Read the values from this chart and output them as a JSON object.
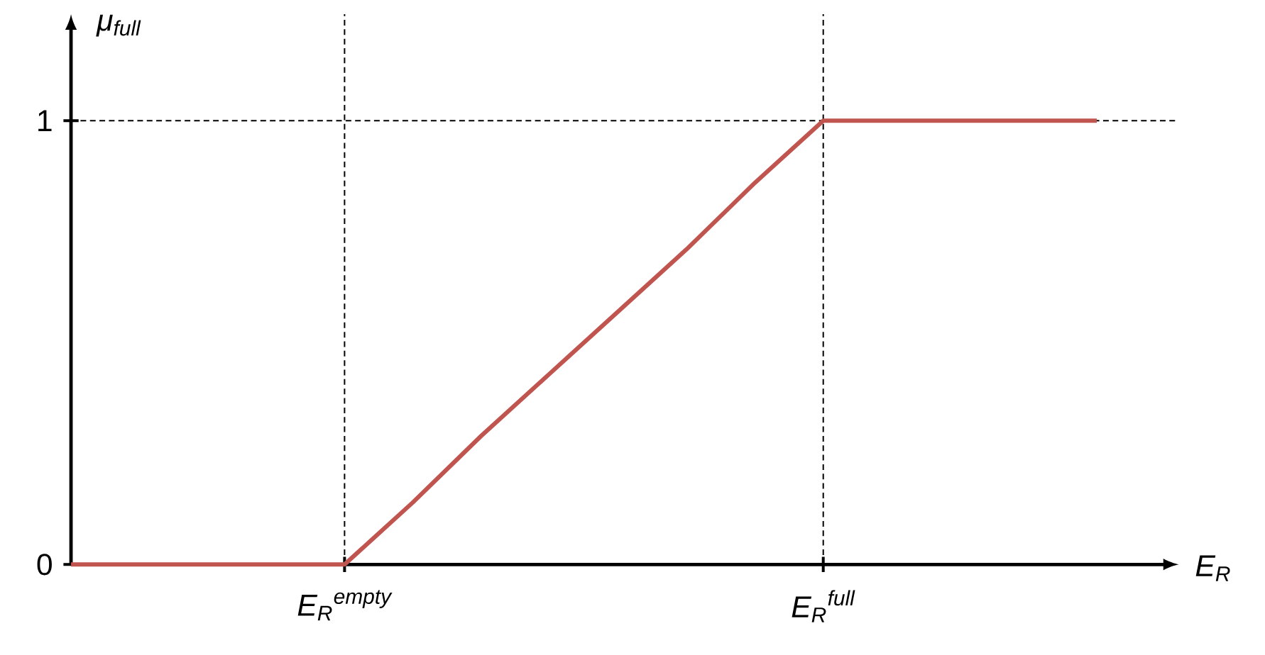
{
  "chart_data": {
    "type": "line",
    "xlabel": "E$_{R}$",
    "ylabel": "μ$_{full}$",
    "categories": [
      null,
      null,
      null,
      null,
      "E$_{R}$$^{empty}$",
      null,
      null,
      null,
      null,
      null,
      null,
      "E$_{R}$$^{full}$",
      null,
      null,
      null,
      null
    ],
    "series": [
      {
        "color": "#c0544f",
        "values": [
          0,
          0,
          0,
          0,
          0,
          0.14,
          0.29,
          0.43,
          0.57,
          0.71,
          0.86,
          1,
          1,
          1,
          1,
          1
        ]
      }
    ],
    "ylim": [
      0,
      1.24
    ],
    "yticks": [
      0,
      1
    ],
    "grid": true
  }
}
